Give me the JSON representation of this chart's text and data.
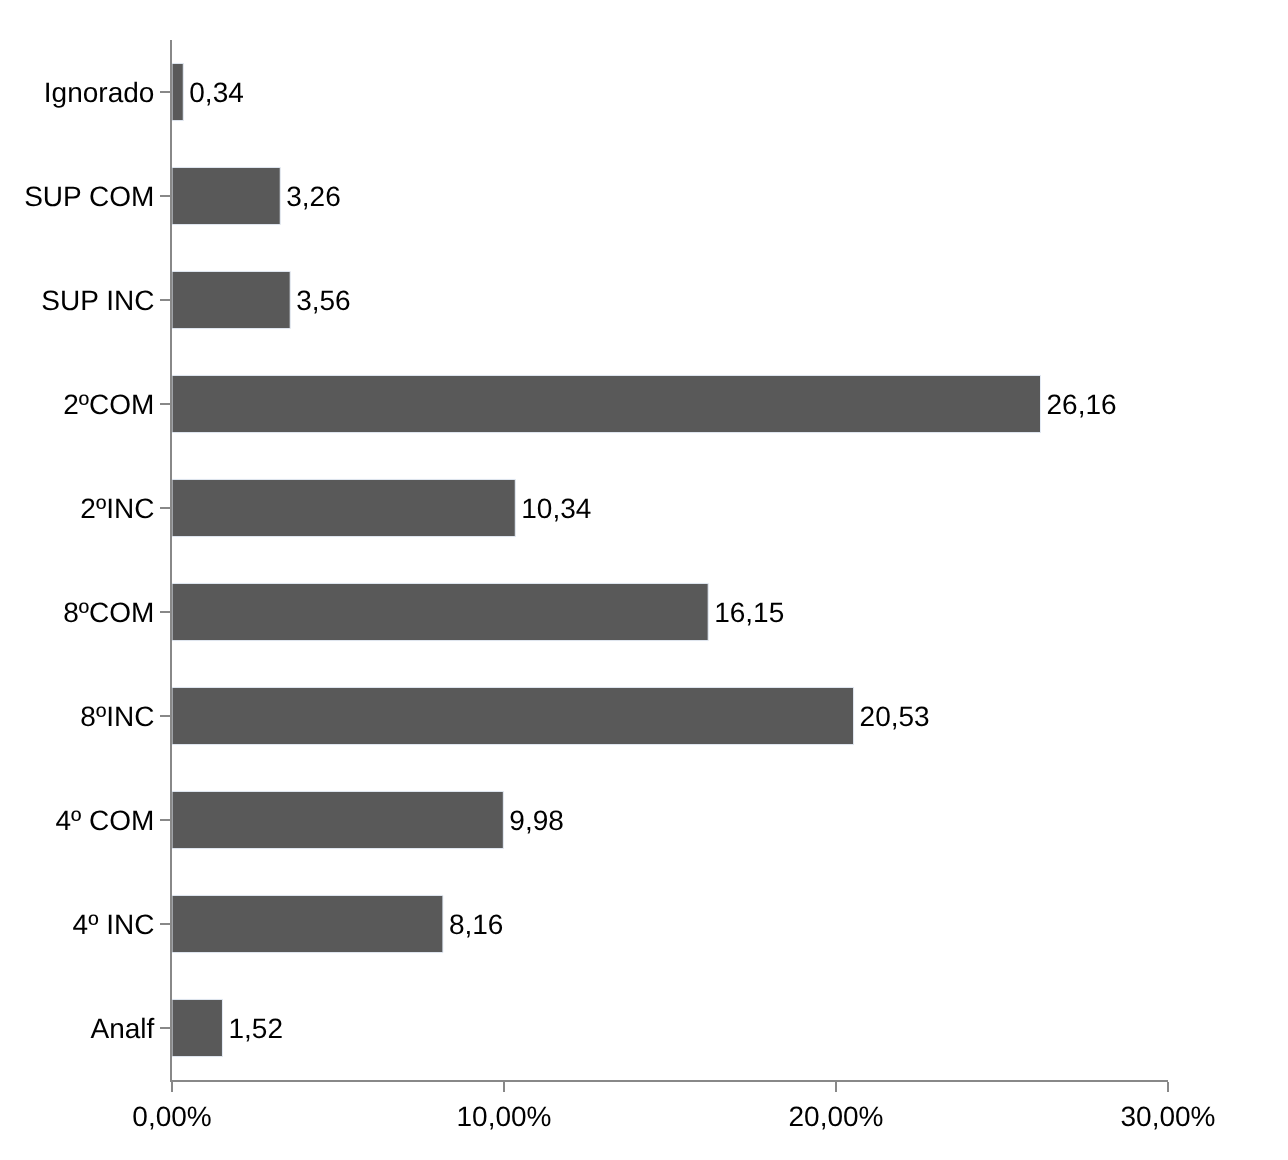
{
  "chart_data": {
    "type": "bar",
    "orientation": "horizontal",
    "categories": [
      "Ignorado",
      "SUP COM",
      "SUP INC",
      "2ºCOM",
      "2ºINC",
      "8ºCOM",
      "8ºINC",
      "4º COM",
      "4º INC",
      "Analf"
    ],
    "values": [
      0.34,
      3.26,
      3.56,
      26.16,
      10.34,
      16.15,
      20.53,
      9.98,
      8.16,
      1.52
    ],
    "value_labels": [
      "0,34",
      "3,26",
      "3,56",
      "26,16",
      "10,34",
      "16,15",
      "20,53",
      "9,98",
      "8,16",
      "1,52"
    ],
    "color": "#595959",
    "xlim": [
      0,
      30
    ],
    "xticks": [
      {
        "value": 0,
        "label": "0,00%"
      },
      {
        "value": 10,
        "label": "10,00%"
      },
      {
        "value": 20,
        "label": "20,00%"
      },
      {
        "value": 30,
        "label": "30,00%"
      }
    ],
    "legend": false
  }
}
